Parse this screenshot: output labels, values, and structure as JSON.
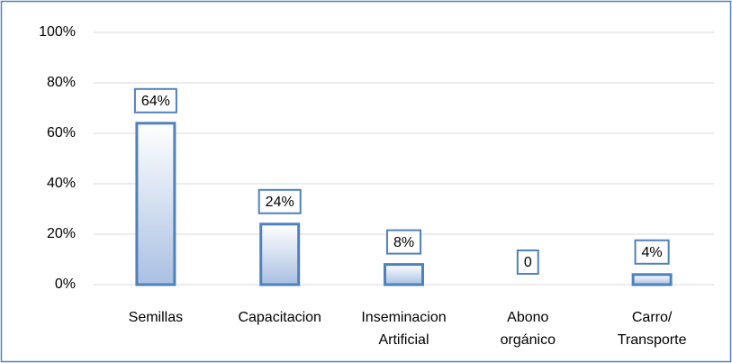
{
  "chart_data": {
    "type": "bar",
    "categories": [
      "Semillas",
      "Capacitacion",
      "Inseminacion\nArtificial",
      "Abono\norgánico",
      "Carro/\nTransporte"
    ],
    "values": [
      64,
      24,
      8,
      0,
      4
    ],
    "value_labels": [
      "64%",
      "24%",
      "8%",
      "0",
      "4%"
    ],
    "color": "#4f81bd",
    "ylim": [
      0,
      100
    ],
    "yticks": [
      {
        "value": 0,
        "label": "0%"
      },
      {
        "value": 20,
        "label": "20%"
      },
      {
        "value": 40,
        "label": "40%"
      },
      {
        "value": 60,
        "label": "60%"
      },
      {
        "value": 80,
        "label": "80%"
      },
      {
        "value": 100,
        "label": "100%"
      }
    ],
    "grid": true
  }
}
